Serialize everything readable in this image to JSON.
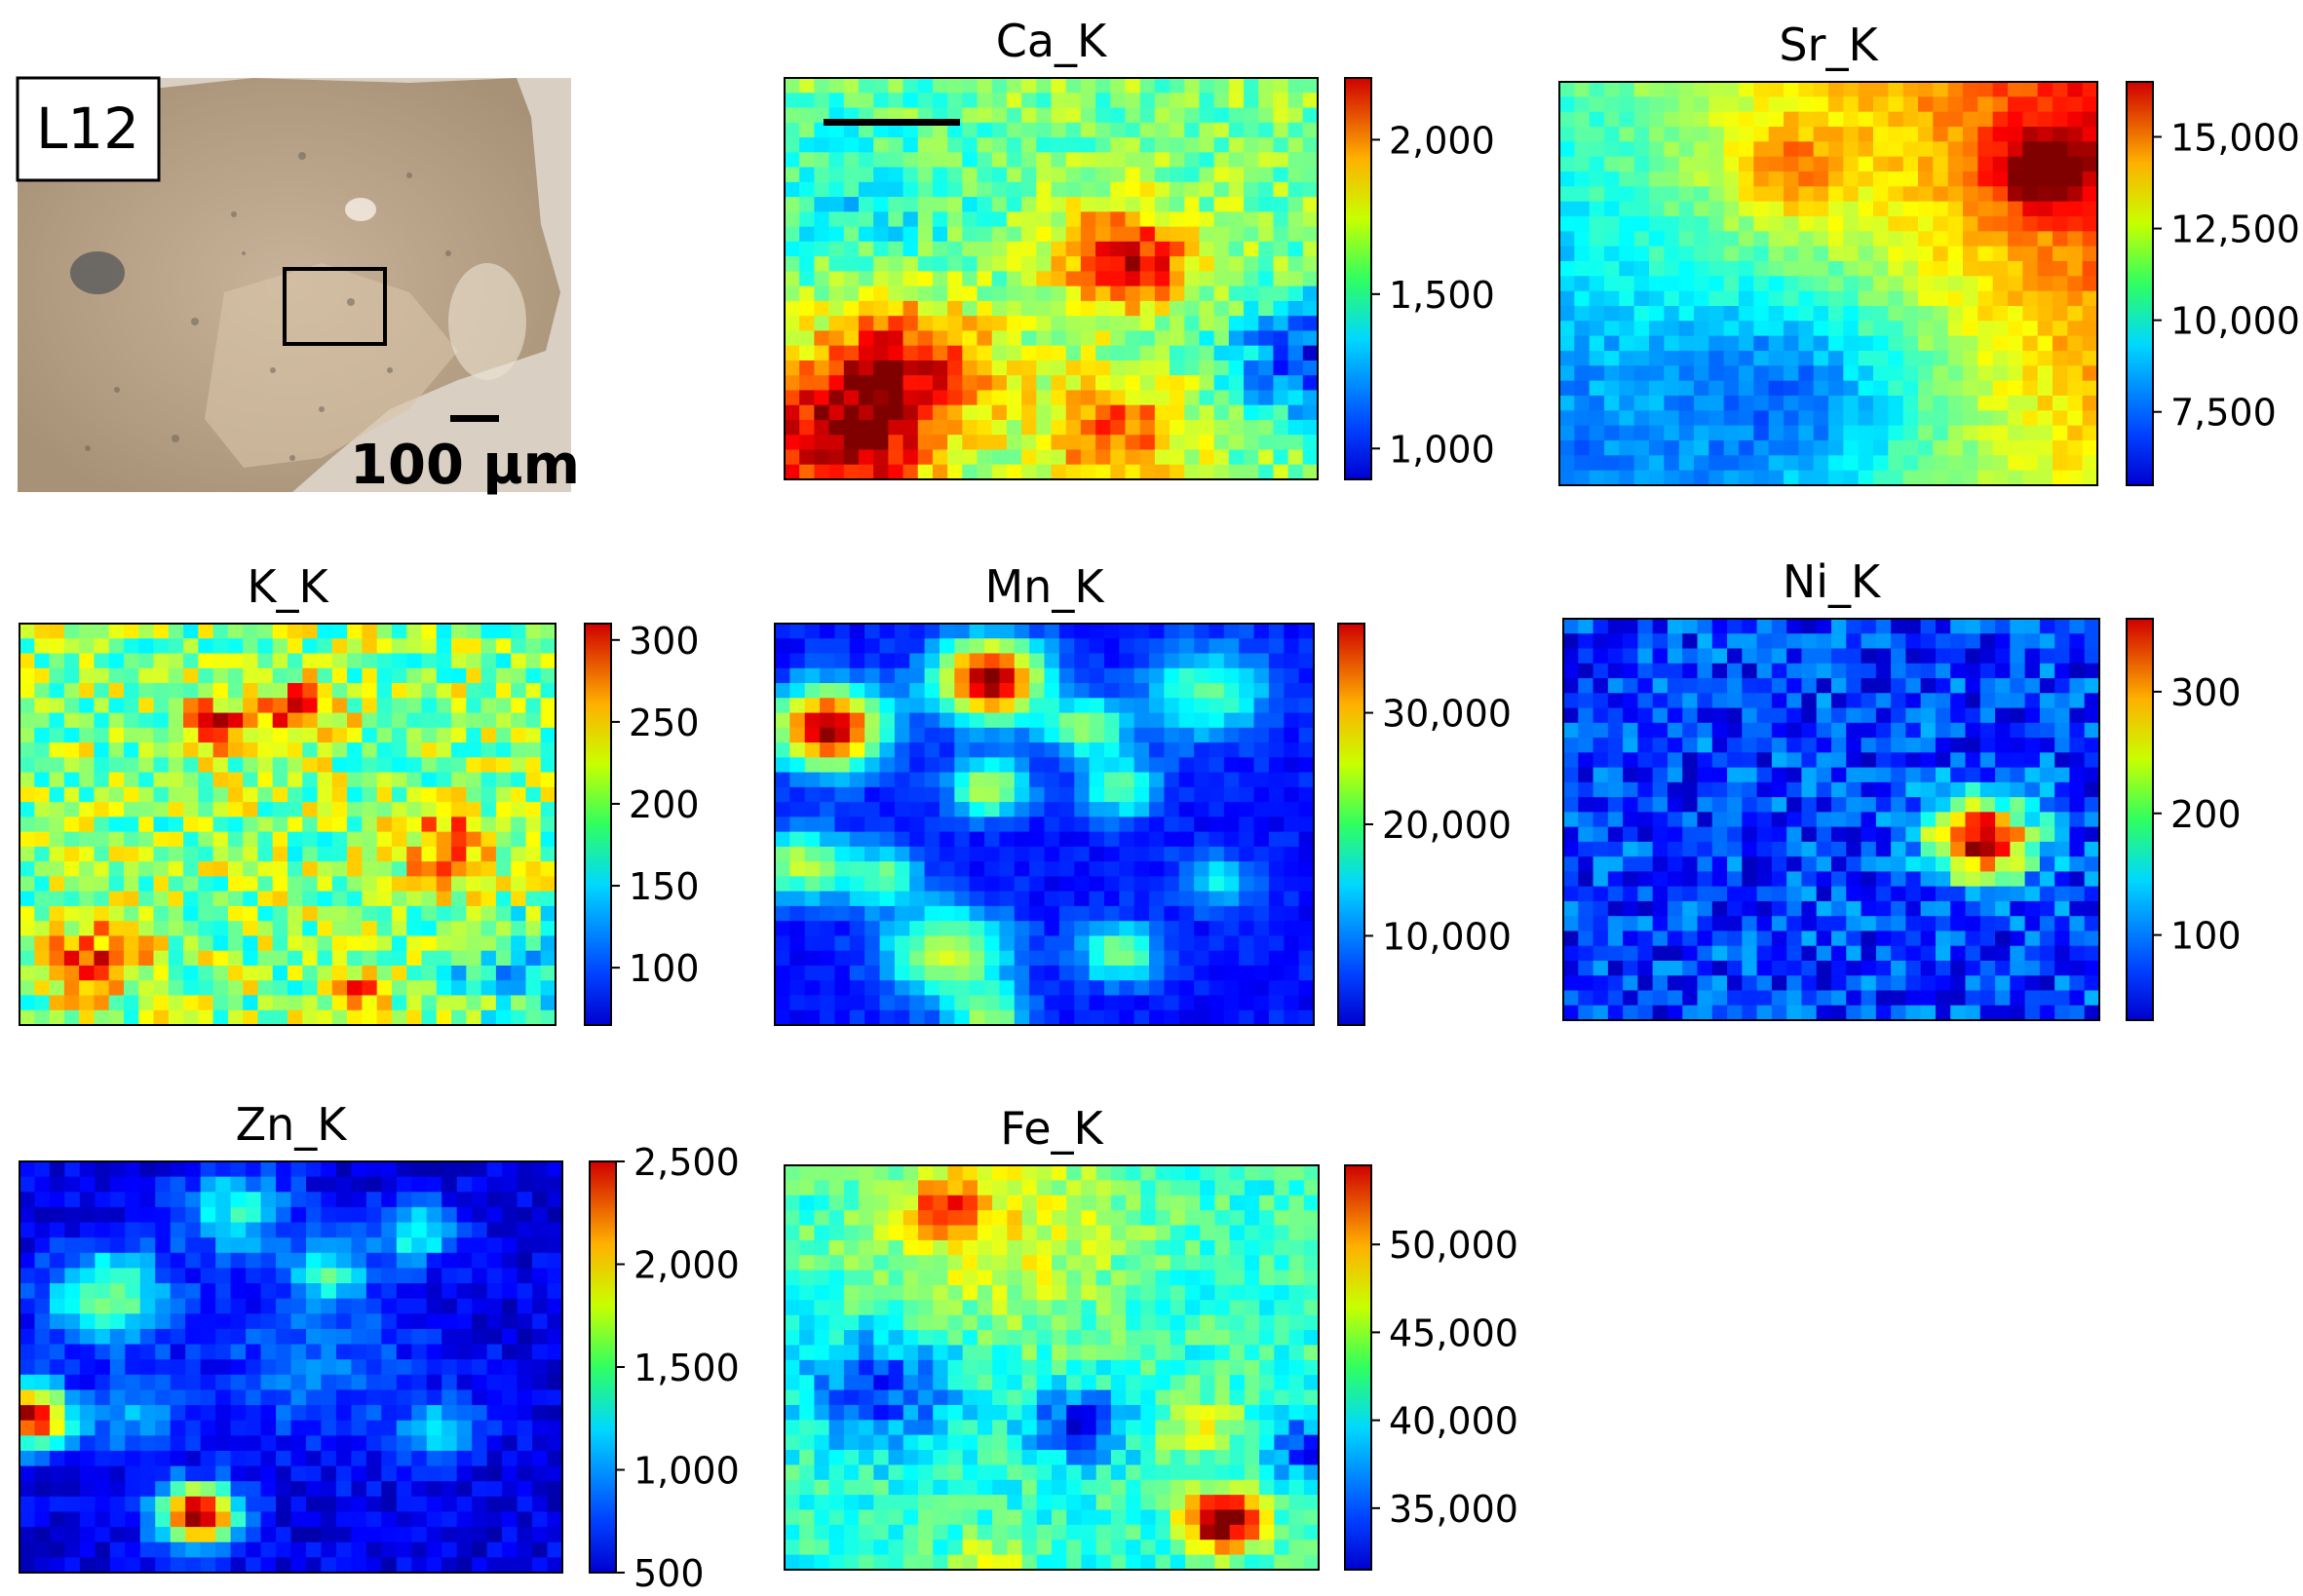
{
  "sample": {
    "label": "L12",
    "scale_label": "100 µm"
  },
  "chart_data": [
    {
      "type": "heatmap",
      "title": "Ca_K",
      "colorbar": {
        "range": [
          900,
          2200
        ],
        "ticks": [
          1000,
          1500,
          2000
        ],
        "tick_labels": [
          "1,000",
          "1,500",
          "2,000"
        ]
      },
      "description": "Ca counts map; high (red/orange) at lower-left and centre, green background, blue at right edge",
      "hotspots": [
        {
          "col": 0.64,
          "row": 0.45,
          "value": 2050
        },
        {
          "col": 0.23,
          "row": 0.74,
          "value": 2100
        },
        {
          "col": 0.1,
          "row": 0.91,
          "value": 2150
        },
        {
          "col": 0.62,
          "row": 0.9,
          "value": 1950
        }
      ]
    },
    {
      "type": "heatmap",
      "title": "Sr_K",
      "colorbar": {
        "range": [
          5500,
          16500
        ],
        "ticks": [
          7500,
          10000,
          12500,
          15000
        ],
        "tick_labels": [
          "7,500",
          "10,000",
          "12,500",
          "15,000"
        ]
      },
      "description": "Sr counts map; highest at upper-right, decreasing toward lower-left"
    },
    {
      "type": "heatmap",
      "title": "K_K",
      "colorbar": {
        "range": [
          65,
          310
        ],
        "ticks": [
          100,
          150,
          200,
          250,
          300
        ],
        "tick_labels": [
          "100",
          "150",
          "200",
          "250",
          "300"
        ]
      },
      "description": "K counts map; noisy green background with scattered orange/red spots"
    },
    {
      "type": "heatmap",
      "title": "Mn_K",
      "colorbar": {
        "range": [
          2000,
          38000
        ],
        "ticks": [
          10000,
          20000,
          30000
        ],
        "tick_labels": [
          "10,000",
          "20,000",
          "30,000"
        ]
      },
      "description": "Mn counts map; blue background with circular hotspots"
    },
    {
      "type": "heatmap",
      "title": "Ni_K",
      "colorbar": {
        "range": [
          30,
          360
        ],
        "ticks": [
          100,
          200,
          300
        ],
        "tick_labels": [
          "100",
          "200",
          "300"
        ]
      },
      "description": "Ni counts map; blue background with single hotspot right of centre"
    },
    {
      "type": "heatmap",
      "title": "Zn_K",
      "colorbar": {
        "range": [
          500,
          2500
        ],
        "ticks": [
          500,
          1000,
          1500,
          2000,
          2500
        ],
        "tick_labels": [
          "500",
          "1,000",
          "1,500",
          "2,000",
          "2,500"
        ]
      },
      "description": "Zn counts map; blue background with round spots, strongest at left edge and bottom"
    },
    {
      "type": "heatmap",
      "title": "Fe_K",
      "colorbar": {
        "range": [
          31500,
          54500
        ],
        "ticks": [
          35000,
          40000,
          45000,
          50000
        ],
        "tick_labels": [
          "35,000",
          "40,000",
          "45,000",
          "50,000"
        ]
      },
      "description": "Fe counts map; green/cyan mixture with blue low areas and a red spot lower-right"
    }
  ]
}
